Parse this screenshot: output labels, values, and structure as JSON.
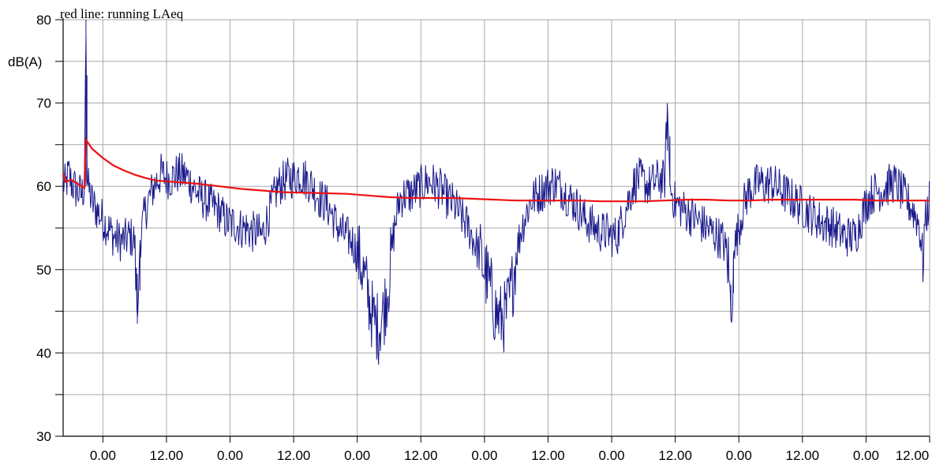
{
  "chart_data": {
    "type": "line",
    "title": "red line: running LAeq",
    "ylabel": "dB(A)",
    "xlabel": "",
    "ylim": [
      30,
      80
    ],
    "y_ticks": [
      30,
      40,
      50,
      60,
      70,
      80
    ],
    "x_tick_labels": [
      "0.00",
      "12.00",
      "0.00",
      "12.00",
      "0.00",
      "12.00",
      "0.00",
      "12.00",
      "0.00",
      "12.00",
      "0.00",
      "12.00",
      "0.00",
      "12.00"
    ],
    "x_hours_range": [
      -7.5,
      156
    ],
    "grid": true,
    "colors": {
      "level": "#1a1a8c",
      "laeq": "#ee1111",
      "grid": "#a8a8a8"
    },
    "series": [
      {
        "name": "",
        "color": "#1a1a8c",
        "points": [
          [
            -7.5,
            60.5
          ],
          [
            -7.0,
            60.0
          ],
          [
            -6.5,
            61.5
          ],
          [
            -6,
            60.5
          ],
          [
            -5,
            59.5
          ],
          [
            -4,
            59.0
          ],
          [
            -3.5,
            60.0
          ],
          [
            -3.2,
            80.0
          ],
          [
            -3.0,
            60.5
          ],
          [
            -2,
            58.0
          ],
          [
            -1,
            57.0
          ],
          [
            0,
            56.0
          ],
          [
            1,
            55.0
          ],
          [
            2,
            54.0
          ],
          [
            3,
            53.5
          ],
          [
            4,
            53.5
          ],
          [
            5,
            54.0
          ],
          [
            6,
            53.5
          ],
          [
            6.5,
            43.5
          ],
          [
            7,
            53.5
          ],
          [
            8,
            57.0
          ],
          [
            9,
            59.0
          ],
          [
            10,
            60.5
          ],
          [
            11,
            61.5
          ],
          [
            12,
            61.0
          ],
          [
            13,
            61.0
          ],
          [
            14,
            61.5
          ],
          [
            15,
            61.5
          ],
          [
            16,
            61.0
          ],
          [
            17,
            60.0
          ],
          [
            18,
            59.0
          ],
          [
            19,
            58.5
          ],
          [
            20,
            58.0
          ],
          [
            21,
            57.5
          ],
          [
            22,
            57.0
          ],
          [
            23,
            56.0
          ],
          [
            24,
            55.5
          ],
          [
            25,
            55.5
          ],
          [
            26,
            55.0
          ],
          [
            27,
            55.0
          ],
          [
            28,
            54.5
          ],
          [
            29,
            54.5
          ],
          [
            30,
            54.0
          ],
          [
            31,
            56.0
          ],
          [
            32,
            58.0
          ],
          [
            33,
            60.0
          ],
          [
            34,
            60.5
          ],
          [
            35,
            61.0
          ],
          [
            36,
            61.0
          ],
          [
            37,
            61.5
          ],
          [
            38,
            61.0
          ],
          [
            39,
            60.5
          ],
          [
            40,
            59.5
          ],
          [
            41,
            58.5
          ],
          [
            42,
            58.0
          ],
          [
            43,
            57.0
          ],
          [
            44,
            55.5
          ],
          [
            45,
            54.5
          ],
          [
            46,
            54.0
          ],
          [
            47,
            53.5
          ],
          [
            48,
            52.0
          ],
          [
            49,
            50.0
          ],
          [
            50,
            47.0
          ],
          [
            51,
            44.0
          ],
          [
            52,
            43.0
          ],
          [
            53,
            45.0
          ],
          [
            54,
            49.0
          ],
          [
            55,
            55.0
          ],
          [
            56,
            58.5
          ],
          [
            57,
            59.0
          ],
          [
            58,
            59.0
          ],
          [
            59,
            59.5
          ],
          [
            60,
            60.0
          ],
          [
            61,
            60.5
          ],
          [
            62,
            60.5
          ],
          [
            63,
            60.0
          ],
          [
            64,
            59.5
          ],
          [
            65,
            58.5
          ],
          [
            66,
            58.0
          ],
          [
            67,
            57.0
          ],
          [
            68,
            56.0
          ],
          [
            69,
            55.0
          ],
          [
            70,
            53.5
          ],
          [
            71,
            52.0
          ],
          [
            72,
            50.0
          ],
          [
            73,
            48.0
          ],
          [
            74,
            45.0
          ],
          [
            75,
            44.0
          ],
          [
            76,
            44.5
          ],
          [
            77,
            47.0
          ],
          [
            78,
            52.0
          ],
          [
            79,
            55.0
          ],
          [
            80,
            57.0
          ],
          [
            81,
            58.5
          ],
          [
            82,
            59.0
          ],
          [
            83,
            59.5
          ],
          [
            84,
            60.0
          ],
          [
            85,
            60.5
          ],
          [
            86,
            60.0
          ],
          [
            87,
            59.5
          ],
          [
            88,
            58.5
          ],
          [
            89,
            58.0
          ],
          [
            90,
            57.0
          ],
          [
            91,
            56.0
          ],
          [
            92,
            55.5
          ],
          [
            93,
            55.0
          ],
          [
            94,
            54.5
          ],
          [
            95,
            54.5
          ],
          [
            96,
            54.0
          ],
          [
            97,
            54.0
          ],
          [
            98,
            56.0
          ],
          [
            99,
            58.0
          ],
          [
            100,
            60.0
          ],
          [
            101,
            61.0
          ],
          [
            102,
            60.5
          ],
          [
            103,
            60.0
          ],
          [
            104,
            60.5
          ],
          [
            105,
            61.0
          ],
          [
            106,
            60.5
          ],
          [
            106.5,
            70.0
          ],
          [
            107,
            60.0
          ],
          [
            108,
            58.0
          ],
          [
            109,
            57.5
          ],
          [
            110,
            57.0
          ],
          [
            111,
            56.5
          ],
          [
            112,
            56.0
          ],
          [
            113,
            55.5
          ],
          [
            114,
            55.0
          ],
          [
            115,
            54.5
          ],
          [
            116,
            54.0
          ],
          [
            117,
            53.5
          ],
          [
            118,
            51.0
          ],
          [
            118.5,
            44.0
          ],
          [
            119,
            52.0
          ],
          [
            120,
            55.0
          ],
          [
            121,
            58.0
          ],
          [
            122,
            59.5
          ],
          [
            123,
            60.0
          ],
          [
            124,
            60.5
          ],
          [
            125,
            60.0
          ],
          [
            126,
            60.5
          ],
          [
            127,
            60.0
          ],
          [
            128,
            59.5
          ],
          [
            129,
            59.0
          ],
          [
            130,
            58.5
          ],
          [
            131,
            58.0
          ],
          [
            132,
            57.5
          ],
          [
            133,
            57.0
          ],
          [
            134,
            56.5
          ],
          [
            135,
            56.0
          ],
          [
            136,
            55.5
          ],
          [
            137,
            55.5
          ],
          [
            138,
            55.0
          ],
          [
            139,
            54.5
          ],
          [
            140,
            54.0
          ],
          [
            141,
            54.0
          ],
          [
            142,
            54.0
          ],
          [
            143,
            56.0
          ],
          [
            144,
            58.0
          ],
          [
            145,
            59.0
          ],
          [
            146,
            59.5
          ],
          [
            147,
            59.5
          ],
          [
            148,
            60.0
          ],
          [
            149,
            60.5
          ],
          [
            150,
            60.0
          ],
          [
            151,
            59.0
          ],
          [
            152,
            58.0
          ],
          [
            153,
            57.0
          ],
          [
            154,
            55.5
          ],
          [
            154.8,
            51.0
          ],
          [
            155,
            55.0
          ],
          [
            156,
            58.5
          ]
        ]
      },
      {
        "name": "",
        "color": "#ee1111",
        "points": [
          [
            -7.5,
            61.5
          ],
          [
            -7,
            60.5
          ],
          [
            -6,
            60.8
          ],
          [
            -4.5,
            60.2
          ],
          [
            -3.5,
            59.8
          ],
          [
            -3.2,
            65.6
          ],
          [
            -2,
            64.5
          ],
          [
            0,
            63.4
          ],
          [
            2,
            62.5
          ],
          [
            4,
            61.9
          ],
          [
            6,
            61.4
          ],
          [
            8,
            61.0
          ],
          [
            10,
            60.7
          ],
          [
            14,
            60.5
          ],
          [
            18,
            60.3
          ],
          [
            22,
            60.0
          ],
          [
            26,
            59.7
          ],
          [
            30,
            59.5
          ],
          [
            34,
            59.3
          ],
          [
            40,
            59.2
          ],
          [
            46,
            59.1
          ],
          [
            50,
            58.9
          ],
          [
            54,
            58.7
          ],
          [
            58,
            58.6
          ],
          [
            62,
            58.6
          ],
          [
            66,
            58.6
          ],
          [
            70,
            58.5
          ],
          [
            74,
            58.4
          ],
          [
            78,
            58.3
          ],
          [
            82,
            58.3
          ],
          [
            86,
            58.3
          ],
          [
            90,
            58.3
          ],
          [
            94,
            58.2
          ],
          [
            98,
            58.2
          ],
          [
            102,
            58.2
          ],
          [
            106,
            58.3
          ],
          [
            110,
            58.4
          ],
          [
            114,
            58.4
          ],
          [
            118,
            58.3
          ],
          [
            122,
            58.3
          ],
          [
            126,
            58.4
          ],
          [
            130,
            58.4
          ],
          [
            134,
            58.4
          ],
          [
            138,
            58.4
          ],
          [
            142,
            58.4
          ],
          [
            146,
            58.3
          ],
          [
            150,
            58.3
          ],
          [
            154,
            58.3
          ],
          [
            156,
            58.3
          ]
        ]
      }
    ]
  }
}
